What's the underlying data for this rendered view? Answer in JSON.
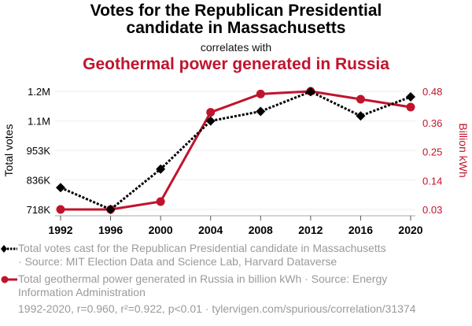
{
  "header": {
    "title_line1": "Votes for the Republican Presidential",
    "title_line2": "candidate in Massachusetts",
    "subtitle": "correlates with",
    "title2": "Geothermal power generated in Russia"
  },
  "colors": {
    "series1": "#000000",
    "series2": "#c0142e",
    "grid": "#eeeeee",
    "axis": "#aaaaaa",
    "muted_text": "#9a9a9a"
  },
  "chart_data": {
    "type": "line",
    "title": "Votes for the Republican Presidential candidate in Massachusetts correlates with Geothermal power generated in Russia",
    "x": [
      1992,
      1996,
      2000,
      2004,
      2008,
      2012,
      2016,
      2020
    ],
    "x_tick_labels": [
      "1992",
      "1996",
      "2000",
      "2004",
      "2008",
      "2012",
      "2016",
      "2020"
    ],
    "xlim": [
      1992,
      2020
    ],
    "grid": true,
    "legend_position": "bottom",
    "series": [
      {
        "name": "Total votes cast for the Republican Presidential candidate in Massachusetts",
        "axis": "left",
        "style": "dotted",
        "marker": "diamond",
        "values": [
          805000,
          718000,
          879000,
          1071000,
          1109000,
          1188000,
          1091000,
          1167000
        ]
      },
      {
        "name": "Total geothermal power generated in Russia in billion kWh",
        "axis": "right",
        "style": "solid",
        "marker": "circle",
        "values": [
          0.03,
          0.03,
          0.06,
          0.4,
          0.47,
          0.48,
          0.45,
          0.42
        ]
      }
    ],
    "y_left": {
      "label": "Total votes",
      "ticks": [
        718000,
        836000,
        953000,
        1071000,
        1189000
      ],
      "tick_labels": [
        "718K",
        "836K",
        "953K",
        "1.1M",
        "1.2M"
      ],
      "ylim": [
        718000,
        1189000
      ]
    },
    "y_right": {
      "label": "Billion kWh",
      "ticks": [
        0.03,
        0.14,
        0.25,
        0.36,
        0.48
      ],
      "tick_labels": [
        "0.03",
        "0.14",
        "0.25",
        "0.36",
        "0.48"
      ],
      "ylim": [
        0.03,
        0.48
      ]
    }
  },
  "legend": {
    "item1_line1": "Total votes cast for the Republican Presidential candidate in Massachusetts",
    "item1_line2": "· Source: MIT Election Data and Science Lab, Harvard Dataverse",
    "item2_line1": "Total geothermal power generated in Russia in billion kWh · Source: Energy",
    "item2_line2": "Information Administration"
  },
  "footer": "1992-2020, r=0.960, r²=0.922, p<0.01 · tylervigen.com/spurious/correlation/31374"
}
